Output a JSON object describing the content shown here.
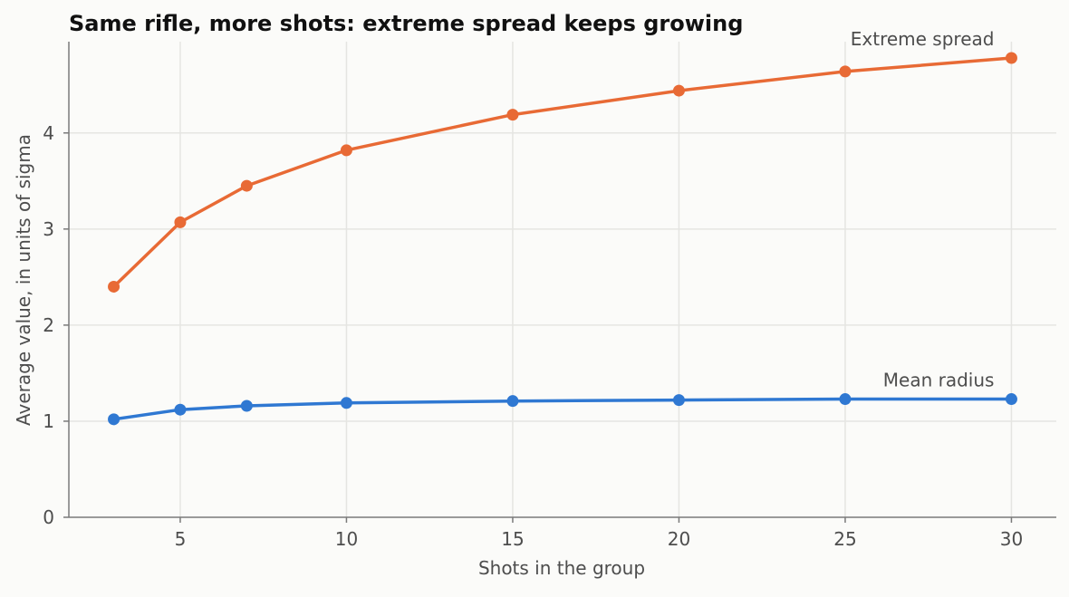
{
  "chart_data": {
    "type": "line",
    "title": "Same rifle, more shots: extreme spread keeps growing",
    "xlabel": "Shots in the group",
    "ylabel": "Average value, in units of sigma",
    "x": [
      3,
      5,
      7,
      10,
      15,
      20,
      25,
      30
    ],
    "xlim": [
      1.65,
      31.35
    ],
    "ylim": [
      0,
      4.95
    ],
    "xticks": [
      5,
      10,
      15,
      20,
      25,
      30
    ],
    "yticks": [
      0,
      1,
      2,
      3,
      4
    ],
    "grid": true,
    "series": [
      {
        "name": "Extreme spread",
        "color": "#e86a35",
        "values": [
          2.4,
          3.07,
          3.45,
          3.82,
          4.19,
          4.44,
          4.64,
          4.78
        ]
      },
      {
        "name": "Mean radius",
        "color": "#2f78d2",
        "values": [
          1.02,
          1.12,
          1.16,
          1.19,
          1.21,
          1.22,
          1.23,
          1.23
        ]
      }
    ]
  }
}
